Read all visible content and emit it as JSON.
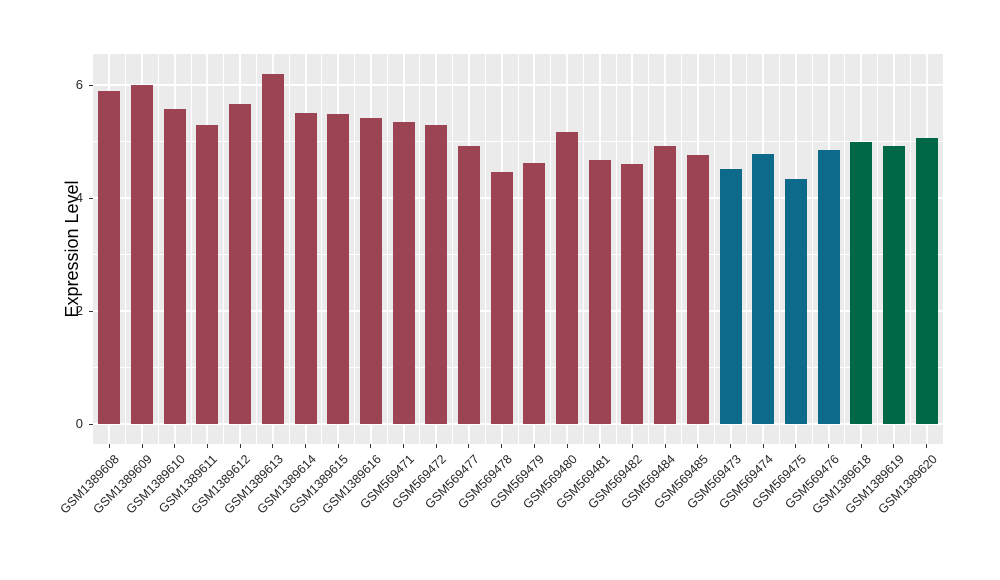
{
  "chart_data": {
    "type": "bar",
    "title": "",
    "xlabel": "",
    "ylabel": "Expression Level",
    "ylim": [
      -0.35,
      6.55
    ],
    "yticks_major": [
      0,
      2,
      4,
      6
    ],
    "yticks_minor": [
      1,
      3,
      5
    ],
    "grid": "major and minor white gridlines on gray panel, vertical major at bar centers, vertical minor between bars",
    "legend_position": "none",
    "panel_bg_color": "#EBEBEB",
    "grid_color": "#FFFFFF",
    "tick_color": "#333333",
    "axis_text_color": "#262626",
    "group_colors": {
      "maroon": "#9C4354",
      "blue": "#0E6A8B",
      "green": "#006847"
    },
    "bars": [
      {
        "label": "GSM1389608",
        "value": 5.9,
        "group": "maroon"
      },
      {
        "label": "GSM1389609",
        "value": 6.01,
        "group": "maroon"
      },
      {
        "label": "GSM1389610",
        "value": 5.57,
        "group": "maroon"
      },
      {
        "label": "GSM1389611",
        "value": 5.3,
        "group": "maroon"
      },
      {
        "label": "GSM1389612",
        "value": 5.67,
        "group": "maroon"
      },
      {
        "label": "GSM1389613",
        "value": 6.2,
        "group": "maroon"
      },
      {
        "label": "GSM1389614",
        "value": 5.5,
        "group": "maroon"
      },
      {
        "label": "GSM1389615",
        "value": 5.48,
        "group": "maroon"
      },
      {
        "label": "GSM1389616",
        "value": 5.41,
        "group": "maroon"
      },
      {
        "label": "GSM569471",
        "value": 5.35,
        "group": "maroon"
      },
      {
        "label": "GSM569472",
        "value": 5.3,
        "group": "maroon"
      },
      {
        "label": "GSM569477",
        "value": 4.93,
        "group": "maroon"
      },
      {
        "label": "GSM569478",
        "value": 4.46,
        "group": "maroon"
      },
      {
        "label": "GSM569479",
        "value": 4.62,
        "group": "maroon"
      },
      {
        "label": "GSM569480",
        "value": 5.17,
        "group": "maroon"
      },
      {
        "label": "GSM569481",
        "value": 4.68,
        "group": "maroon"
      },
      {
        "label": "GSM569482",
        "value": 4.61,
        "group": "maroon"
      },
      {
        "label": "GSM569484",
        "value": 4.92,
        "group": "maroon"
      },
      {
        "label": "GSM569485",
        "value": 4.76,
        "group": "maroon"
      },
      {
        "label": "GSM569473",
        "value": 4.52,
        "group": "blue"
      },
      {
        "label": "GSM569474",
        "value": 4.78,
        "group": "blue"
      },
      {
        "label": "GSM569475",
        "value": 4.33,
        "group": "blue"
      },
      {
        "label": "GSM569476",
        "value": 4.85,
        "group": "blue"
      },
      {
        "label": "GSM1389618",
        "value": 4.99,
        "group": "green"
      },
      {
        "label": "GSM1389619",
        "value": 4.92,
        "group": "green"
      },
      {
        "label": "GSM1389620",
        "value": 5.06,
        "group": "green"
      }
    ]
  }
}
